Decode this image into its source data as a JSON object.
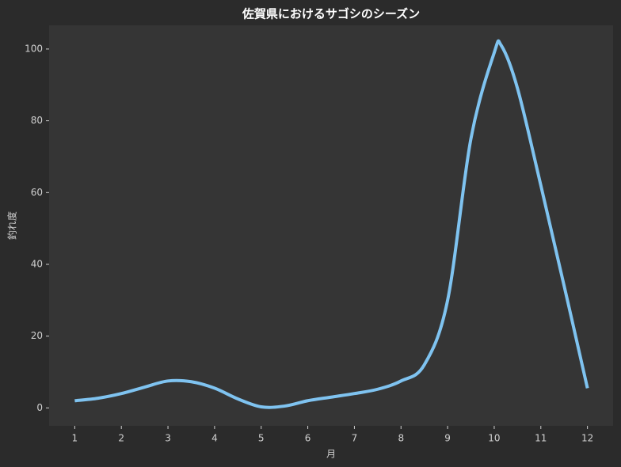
{
  "chart_data": {
    "type": "line",
    "title": "佐賀県におけるサゴシのシーズン",
    "x_label": "月",
    "y_label": "釣れ度",
    "x": [
      1,
      1.5,
      2,
      2.5,
      3,
      3.5,
      4,
      4.5,
      5,
      5.5,
      6,
      6.5,
      7,
      7.5,
      8,
      8.5,
      9,
      9.5,
      10,
      10.15,
      10.5,
      11,
      11.5,
      12
    ],
    "series": [
      {
        "name": "釣れ度",
        "color": "#7fc3f0",
        "values": [
          2,
          2.7,
          4,
          5.8,
          7.5,
          7.3,
          5.5,
          2.5,
          0.3,
          0.5,
          2,
          3,
          4,
          5.2,
          7.5,
          12,
          30,
          75,
          99,
          101,
          89,
          62,
          34,
          5.5
        ]
      }
    ],
    "xlim": [
      0.45,
      12.55
    ],
    "xticks": [
      1,
      2,
      3,
      4,
      5,
      6,
      7,
      8,
      9,
      10,
      11,
      12
    ],
    "ylim": [
      -5,
      106.6
    ],
    "yticks": [
      0,
      20,
      40,
      60,
      80,
      100
    ],
    "grid": false
  }
}
